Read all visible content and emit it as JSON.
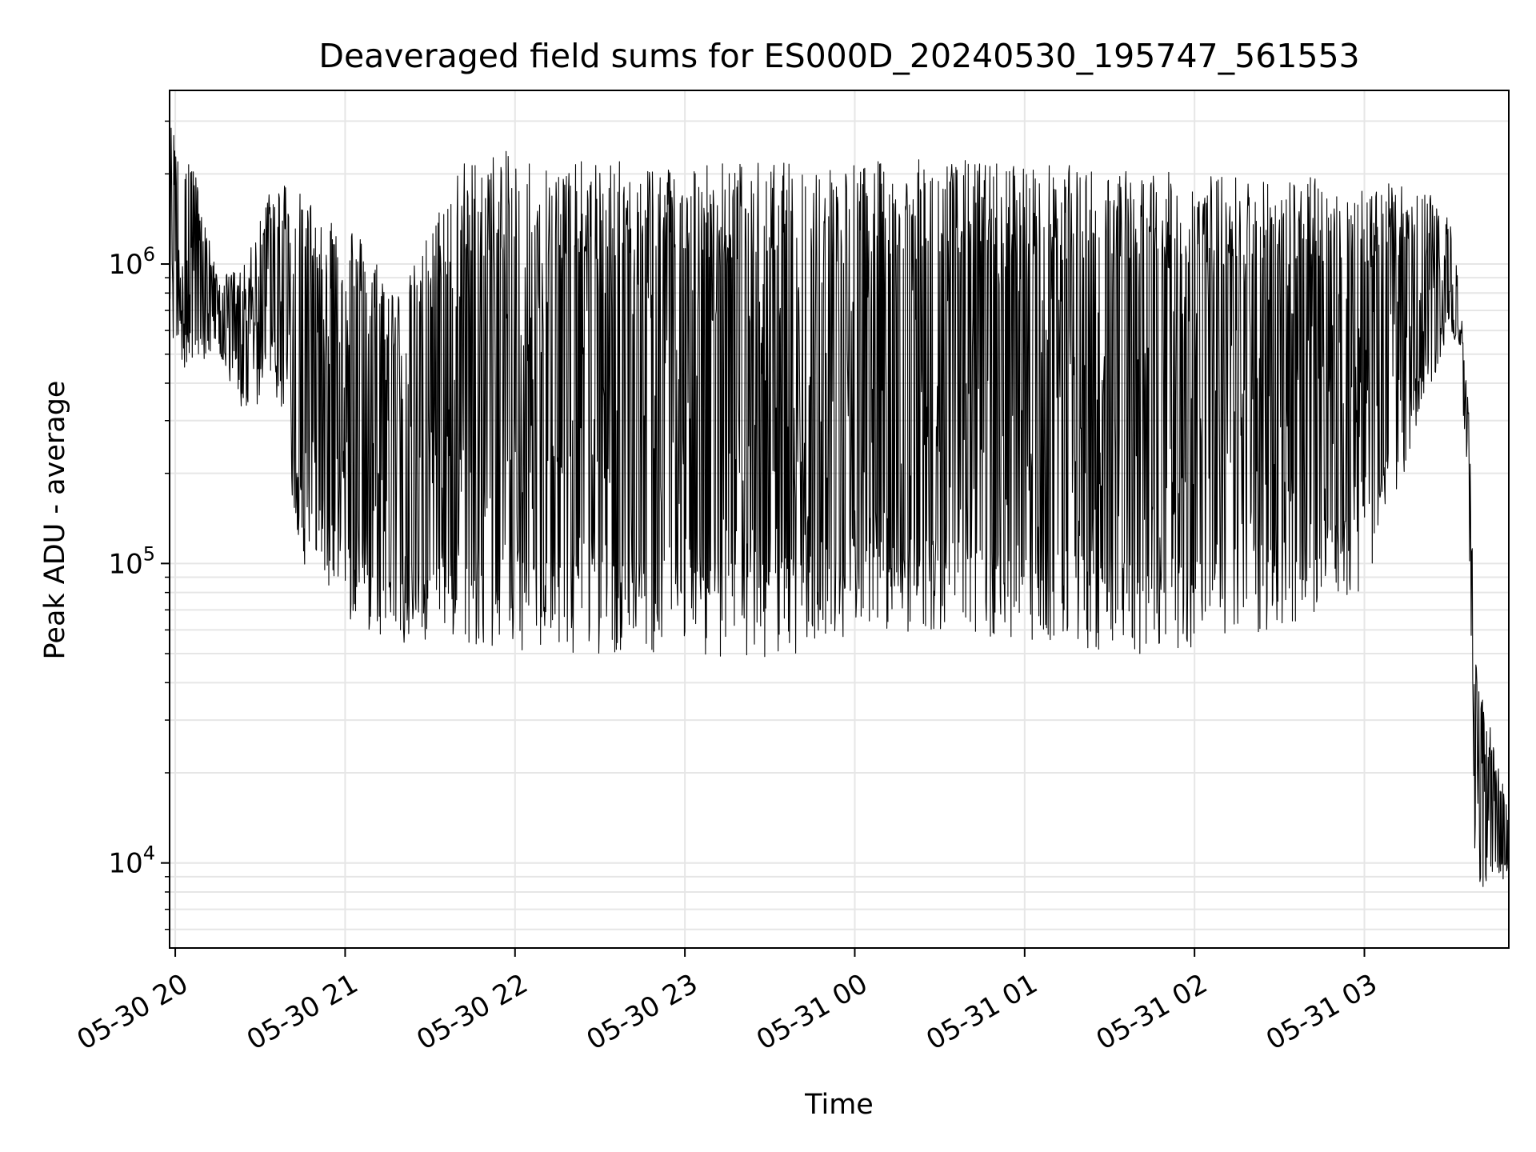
{
  "chart_data": {
    "type": "line",
    "title": "Deaveraged field sums for ES000D_20240530_195747_561553",
    "xlabel": "Time",
    "ylabel": "Peak ADU - average",
    "yscale": "log",
    "ylim": [
      5200,
      3800000
    ],
    "xlim": [
      "2024-05-30 19:58",
      "2024-05-31 03:51"
    ],
    "grid": true,
    "line_color": "#000000",
    "grid_color": "#e6e6e6",
    "x_ticks": [
      {
        "t": "2024-05-30 20:00",
        "label": "05-30 20"
      },
      {
        "t": "2024-05-30 21:00",
        "label": "05-30 21"
      },
      {
        "t": "2024-05-30 22:00",
        "label": "05-30 22"
      },
      {
        "t": "2024-05-30 23:00",
        "label": "05-30 23"
      },
      {
        "t": "2024-05-31 00:00",
        "label": "05-31 00"
      },
      {
        "t": "2024-05-31 01:00",
        "label": "05-31 01"
      },
      {
        "t": "2024-05-31 02:00",
        "label": "05-31 02"
      },
      {
        "t": "2024-05-31 03:00",
        "label": "05-31 03"
      }
    ],
    "y_ticks": [
      {
        "value": 10000,
        "base": "10",
        "exp": "4"
      },
      {
        "value": 100000,
        "base": "10",
        "exp": "5"
      },
      {
        "value": 1000000,
        "base": "10",
        "exp": "6"
      }
    ],
    "series": [
      {
        "envelope": [
          {
            "t": "2024-05-30 19:58",
            "low": 550000,
            "high": 3000000
          },
          {
            "t": "2024-05-30 20:05",
            "low": 420000,
            "high": 2500000
          },
          {
            "t": "2024-05-30 20:15",
            "low": 500000,
            "high": 900000
          },
          {
            "t": "2024-05-30 20:25",
            "low": 300000,
            "high": 1000000
          },
          {
            "t": "2024-05-30 20:35",
            "low": 400000,
            "high": 2100000
          },
          {
            "t": "2024-05-30 20:45",
            "low": 100000,
            "high": 1700000
          },
          {
            "t": "2024-05-30 21:00",
            "low": 65000,
            "high": 1500000
          },
          {
            "t": "2024-05-30 21:20",
            "low": 52000,
            "high": 800000
          },
          {
            "t": "2024-05-30 21:40",
            "low": 55000,
            "high": 2200000
          },
          {
            "t": "2024-05-30 21:55",
            "low": 52000,
            "high": 2400000
          },
          {
            "t": "2024-05-30 22:20",
            "low": 50000,
            "high": 2200000
          },
          {
            "t": "2024-05-30 23:00",
            "low": 50000,
            "high": 2250000
          },
          {
            "t": "2024-05-30 23:30",
            "low": 47000,
            "high": 2200000
          },
          {
            "t": "2024-05-31 00:00",
            "low": 58000,
            "high": 2200000
          },
          {
            "t": "2024-05-31 00:30",
            "low": 60000,
            "high": 2250000
          },
          {
            "t": "2024-05-31 01:00",
            "low": 55000,
            "high": 2200000
          },
          {
            "t": "2024-05-31 01:30",
            "low": 50000,
            "high": 2100000
          },
          {
            "t": "2024-05-31 02:00",
            "low": 50000,
            "high": 2000000
          },
          {
            "t": "2024-05-31 02:30",
            "low": 60000,
            "high": 2000000
          },
          {
            "t": "2024-05-31 03:00",
            "low": 80000,
            "high": 1900000
          },
          {
            "t": "2024-05-31 03:20",
            "low": 300000,
            "high": 1800000
          },
          {
            "t": "2024-05-31 03:30",
            "low": 600000,
            "high": 1500000
          },
          {
            "t": "2024-05-31 03:34",
            "low": 500000,
            "high": 800000
          },
          {
            "t": "2024-05-31 03:37",
            "low": 100000,
            "high": 300000
          },
          {
            "t": "2024-05-31 03:39",
            "low": 10000,
            "high": 55000
          },
          {
            "t": "2024-05-31 03:43",
            "low": 7000,
            "high": 33000
          },
          {
            "t": "2024-05-31 03:47",
            "low": 8500,
            "high": 22000
          },
          {
            "t": "2024-05-31 03:51",
            "low": 9000,
            "high": 15000
          }
        ]
      }
    ]
  }
}
